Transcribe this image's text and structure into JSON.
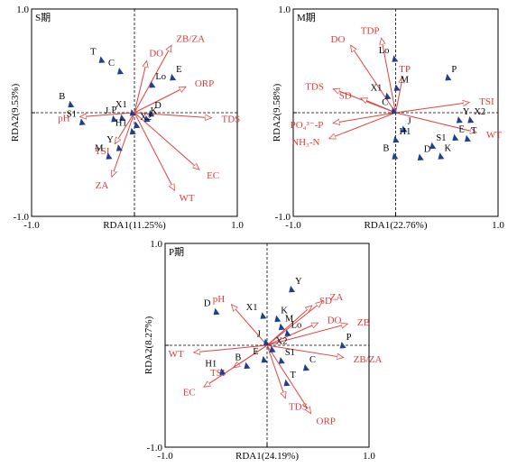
{
  "chart_data": [
    {
      "type": "scatter",
      "panel": "S期",
      "xlabel": "RDA1(11.25%)",
      "ylabel": "RDA2(9.53%)",
      "xlim": [
        -1.0,
        1.0
      ],
      "ylim": [
        -1.0,
        1.0
      ],
      "x_ticks": [
        "-1.0",
        "1.0"
      ],
      "y_ticks": [
        "1.0",
        "-1.0"
      ],
      "env_vectors": [
        {
          "name": "ZB/ZA",
          "x": 0.36,
          "y": 0.65
        },
        {
          "name": "DO",
          "x": 0.12,
          "y": 0.5
        },
        {
          "name": "ORP",
          "x": 0.5,
          "y": 0.25
        },
        {
          "name": "TDS",
          "x": 0.75,
          "y": -0.05
        },
        {
          "name": "EC",
          "x": 0.63,
          "y": -0.55
        },
        {
          "name": "WT",
          "x": 0.39,
          "y": -0.75
        },
        {
          "name": "pH",
          "x": -0.53,
          "y": -0.04
        },
        {
          "name": "TSI",
          "x": -0.19,
          "y": -0.3
        },
        {
          "name": "ZA",
          "x": -0.22,
          "y": -0.62
        }
      ],
      "sites": [
        {
          "name": "T",
          "x": -0.32,
          "y": 0.51
        },
        {
          "name": "C",
          "x": -0.14,
          "y": 0.4
        },
        {
          "name": "B",
          "x": -0.62,
          "y": 0.08
        },
        {
          "name": "S1",
          "x": -0.51,
          "y": -0.09
        },
        {
          "name": "J",
          "x": -0.2,
          "y": -0.06
        },
        {
          "name": "P",
          "x": -0.12,
          "y": -0.05
        },
        {
          "name": "X1",
          "x": -0.02,
          "y": 0.0
        },
        {
          "name": "Lo",
          "x": 0.17,
          "y": 0.27
        },
        {
          "name": "E",
          "x": 0.37,
          "y": 0.34
        },
        {
          "name": "D",
          "x": 0.16,
          "y": -0.01
        },
        {
          "name": "K",
          "x": 0.12,
          "y": -0.06
        },
        {
          "name": "X2",
          "x": 0.02,
          "y": -0.12
        },
        {
          "name": "H1",
          "x": -0.02,
          "y": -0.18
        },
        {
          "name": "Y",
          "x": -0.15,
          "y": -0.34
        },
        {
          "name": "M",
          "x": -0.25,
          "y": -0.42
        }
      ]
    },
    {
      "type": "scatter",
      "panel": "M期",
      "xlabel": "RDA1(22.76%)",
      "ylabel": "RDA2(9.58%)",
      "xlim": [
        -1.0,
        1.0
      ],
      "ylim": [
        -1.0,
        1.0
      ],
      "x_ticks": [
        "-1.0",
        "1.0"
      ],
      "y_ticks": [
        "1.0",
        "-1.0"
      ],
      "env_vectors": [
        {
          "name": "DO",
          "x": -0.44,
          "y": 0.65
        },
        {
          "name": "TDP",
          "x": -0.14,
          "y": 0.72
        },
        {
          "name": "TP",
          "x": 0.07,
          "y": 0.35
        },
        {
          "name": "TDS",
          "x": -0.61,
          "y": 0.23
        },
        {
          "name": "SD",
          "x": -0.34,
          "y": 0.14
        },
        {
          "name": "TSI",
          "x": 0.72,
          "y": 0.1
        },
        {
          "name": "WT",
          "x": 0.79,
          "y": -0.19
        },
        {
          "name": "PO₄³⁻-P",
          "x": -0.61,
          "y": -0.1
        },
        {
          "name": "NH₃-N",
          "x": -0.65,
          "y": -0.25
        }
      ],
      "sites": [
        {
          "name": "Lo",
          "x": -0.01,
          "y": 0.52
        },
        {
          "name": "M",
          "x": 0.01,
          "y": 0.24
        },
        {
          "name": "X1",
          "x": -0.08,
          "y": 0.16
        },
        {
          "name": "C",
          "x": -0.02,
          "y": 0.02
        },
        {
          "name": "P",
          "x": 0.51,
          "y": 0.34
        },
        {
          "name": "J",
          "x": 0.08,
          "y": -0.16
        },
        {
          "name": "H1",
          "x": 0.0,
          "y": -0.26
        },
        {
          "name": "B",
          "x": -0.01,
          "y": -0.42
        },
        {
          "name": "D",
          "x": 0.24,
          "y": -0.43
        },
        {
          "name": "K",
          "x": 0.44,
          "y": -0.42
        },
        {
          "name": "S1",
          "x": 0.36,
          "y": -0.32
        },
        {
          "name": "E",
          "x": 0.58,
          "y": -0.24
        },
        {
          "name": "T",
          "x": 0.7,
          "y": -0.25
        },
        {
          "name": "Y",
          "x": 0.62,
          "y": -0.07
        },
        {
          "name": "X2",
          "x": 0.73,
          "y": -0.07
        }
      ]
    },
    {
      "type": "scatter",
      "panel": "P期",
      "xlabel": "RDA1(24.19%)",
      "ylabel": "RDA2(8.27%)",
      "xlim": [
        -1.0,
        1.0
      ],
      "ylim": [
        -1.0,
        1.0
      ],
      "x_ticks": [
        "-1.0",
        "1.0"
      ],
      "y_ticks": [
        "1.0",
        "-1.0"
      ],
      "env_vectors": [
        {
          "name": "pH",
          "x": -0.35,
          "y": 0.4
        },
        {
          "name": "SD",
          "x": 0.44,
          "y": 0.39
        },
        {
          "name": "ZA",
          "x": 0.54,
          "y": 0.43
        },
        {
          "name": "DO",
          "x": 0.5,
          "y": 0.22
        },
        {
          "name": "ZB",
          "x": 0.79,
          "y": 0.21
        },
        {
          "name": "ZB/ZA",
          "x": 0.75,
          "y": -0.12
        },
        {
          "name": "WT",
          "x": -0.72,
          "y": -0.07
        },
        {
          "name": "TSI",
          "x": -0.33,
          "y": -0.22
        },
        {
          "name": "EC",
          "x": -0.62,
          "y": -0.41
        },
        {
          "name": "TDS",
          "x": 0.18,
          "y": -0.52
        },
        {
          "name": "ORP",
          "x": 0.43,
          "y": -0.67
        }
      ],
      "sites": [
        {
          "name": "Y",
          "x": 0.24,
          "y": 0.55
        },
        {
          "name": "D",
          "x": -0.5,
          "y": 0.33
        },
        {
          "name": "X1",
          "x": -0.04,
          "y": 0.29
        },
        {
          "name": "K",
          "x": 0.1,
          "y": 0.26
        },
        {
          "name": "M",
          "x": 0.14,
          "y": 0.18
        },
        {
          "name": "Lo",
          "x": 0.2,
          "y": 0.12
        },
        {
          "name": "J",
          "x": -0.01,
          "y": 0.03
        },
        {
          "name": "P",
          "x": 0.74,
          "y": 0.0
        },
        {
          "name": "X2",
          "x": 0.05,
          "y": -0.04
        },
        {
          "name": "E",
          "x": -0.03,
          "y": -0.14
        },
        {
          "name": "S1",
          "x": 0.14,
          "y": -0.15
        },
        {
          "name": "C",
          "x": 0.38,
          "y": -0.22
        },
        {
          "name": "B",
          "x": -0.2,
          "y": -0.2
        },
        {
          "name": "H1",
          "x": -0.44,
          "y": -0.26
        },
        {
          "name": "T",
          "x": 0.19,
          "y": -0.37
        }
      ]
    }
  ]
}
